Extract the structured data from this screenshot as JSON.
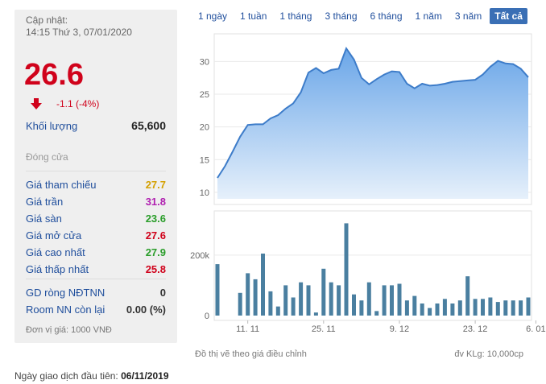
{
  "header": {
    "update_label": "Cập nhật:",
    "update_time": "14:15 Thứ 3, 07/01/2020",
    "price": "26.6",
    "change": "-1.1 (-4%)"
  },
  "volume": {
    "label": "Khối lượng",
    "value": "65,600"
  },
  "closed_label": "Đóng cửa",
  "stats": [
    {
      "label": "Giá tham chiếu",
      "value": "27.7",
      "color": "#d4a000"
    },
    {
      "label": "Giá trần",
      "value": "31.8",
      "color": "#b020b0"
    },
    {
      "label": "Giá sàn",
      "value": "23.6",
      "color": "#2a9d2a"
    },
    {
      "label": "Giá mở cửa",
      "value": "27.6",
      "color": "#d0021b"
    },
    {
      "label": "Giá cao nhất",
      "value": "27.9",
      "color": "#2a9d2a"
    },
    {
      "label": "Giá thấp nhất",
      "value": "25.8",
      "color": "#d0021b"
    }
  ],
  "foreign": [
    {
      "label": "GD ròng NĐTNN",
      "value": "0"
    },
    {
      "label": "Room NN còn lại",
      "value": "0.00 (%)"
    }
  ],
  "unit_note": "Đơn vị giá: 1000 VNĐ",
  "tabs": [
    "1 ngày",
    "1 tuần",
    "1 tháng",
    "3 tháng",
    "6 tháng",
    "1 năm",
    "3 năm",
    "Tất cả"
  ],
  "active_tab": "Tất cả",
  "chart_note": "Đồ thị vẽ theo giá điều chỉnh",
  "volume_unit": "đv KLg: 10,000cp",
  "first_trading_day_label": "Ngày giao dịch đầu tiên:",
  "first_trading_day": "06/11/2019",
  "chart_data": {
    "type": "area",
    "price_axis": {
      "ticks": [
        "10",
        "15",
        "20",
        "25",
        "30"
      ],
      "ylim": [
        9,
        33
      ]
    },
    "volume_axis": {
      "ticks": [
        "0",
        "200k"
      ],
      "ylim": [
        0,
        330000
      ]
    },
    "x_ticks": [
      {
        "label": "11. 11",
        "index": 4
      },
      {
        "label": "25. 11",
        "index": 14
      },
      {
        "label": "9. 12",
        "index": 24
      },
      {
        "label": "23. 12",
        "index": 34
      },
      {
        "label": "6. 01",
        "index": 42
      }
    ],
    "price": [
      12.2,
      14.0,
      16.2,
      18.5,
      20.3,
      20.4,
      20.4,
      21.3,
      21.8,
      22.8,
      23.6,
      25.3,
      28.3,
      29.0,
      28.2,
      28.7,
      28.9,
      32.0,
      30.3,
      27.5,
      26.5,
      27.3,
      28.0,
      28.5,
      28.4,
      26.6,
      25.9,
      26.6,
      26.3,
      26.4,
      26.6,
      26.9,
      27.0,
      27.1,
      27.2,
      28.0,
      29.2,
      30.1,
      29.7,
      29.6,
      28.9,
      27.6
    ],
    "volume": [
      170000,
      0,
      0,
      75000,
      140000,
      120000,
      205000,
      80000,
      30000,
      100000,
      60000,
      110000,
      100000,
      10000,
      155000,
      110000,
      100000,
      305000,
      70000,
      50000,
      110000,
      15000,
      100000,
      100000,
      105000,
      50000,
      65000,
      40000,
      25000,
      40000,
      55000,
      40000,
      50000,
      130000,
      55000,
      55000,
      60000,
      45000,
      50000,
      50000,
      50000,
      60000
    ]
  }
}
